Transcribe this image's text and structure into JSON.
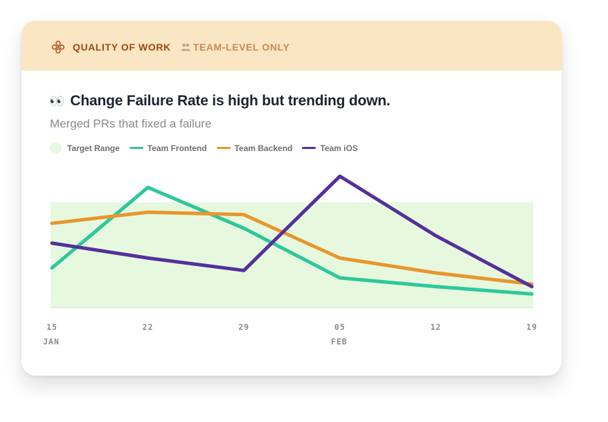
{
  "header": {
    "section_label": "QUALITY OF WORK",
    "scope_label": "TEAM-LEVEL ONLY",
    "section_icon": "flower-icon",
    "scope_icon": "people-icon"
  },
  "headline": {
    "emoji": "👀",
    "title": "Change Failure Rate is high but trending down.",
    "subtitle": "Merged PRs that fixed a failure"
  },
  "colors": {
    "banner_bg": "#fbe6c4",
    "target_range": "#e6f9de",
    "frontend": "#2ec79a",
    "backend": "#e8962e",
    "ios": "#55309a"
  },
  "chart_data": {
    "type": "line",
    "x": [
      "15",
      "22",
      "29",
      "05",
      "12",
      "19"
    ],
    "x_sublabels": [
      "JAN",
      "",
      "",
      "FEB",
      "",
      ""
    ],
    "ylim": [
      0,
      100
    ],
    "target_range": [
      0,
      85
    ],
    "legend": [
      {
        "name": "Target Range",
        "kind": "area"
      },
      {
        "name": "Team Frontend",
        "kind": "line"
      },
      {
        "name": "Team Backend",
        "kind": "line"
      },
      {
        "name": "Team iOS",
        "kind": "line"
      }
    ],
    "series": [
      {
        "name": "Team Frontend",
        "color": "#2ec79a",
        "values": [
          32,
          97,
          64,
          24,
          17,
          11
        ]
      },
      {
        "name": "Team Backend",
        "color": "#e8962e",
        "values": [
          68,
          77,
          75,
          40,
          28,
          19
        ]
      },
      {
        "name": "Team iOS",
        "color": "#55309a",
        "values": [
          52,
          40,
          30,
          106,
          58,
          17
        ]
      }
    ]
  }
}
